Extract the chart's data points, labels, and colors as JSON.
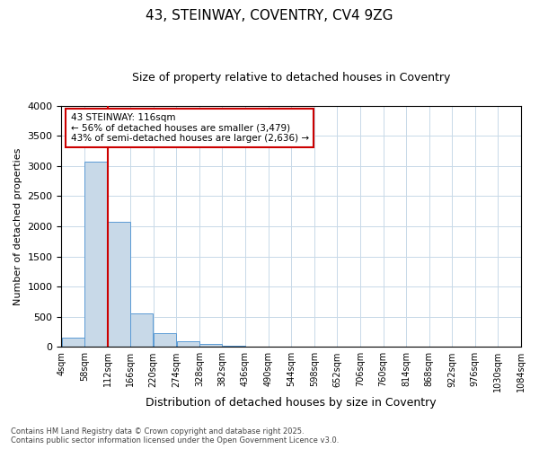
{
  "title1": "43, STEINWAY, COVENTRY, CV4 9ZG",
  "title2": "Size of property relative to detached houses in Coventry",
  "xlabel": "Distribution of detached houses by size in Coventry",
  "ylabel": "Number of detached properties",
  "annotation_title": "43 STEINWAY: 116sqm",
  "annotation_line1": "← 56% of detached houses are smaller (3,479)",
  "annotation_line2": "43% of semi-detached houses are larger (2,636) →",
  "footer1": "Contains HM Land Registry data © Crown copyright and database right 2025.",
  "footer2": "Contains public sector information licensed under the Open Government Licence v3.0.",
  "property_sqm": 116,
  "bin_edges": [
    4,
    58,
    112,
    166,
    220,
    274,
    328,
    382,
    436,
    490,
    544,
    598,
    652,
    706,
    760,
    814,
    868,
    922,
    976,
    1030,
    1084
  ],
  "bin_labels": [
    "4sqm",
    "58sqm",
    "112sqm",
    "166sqm",
    "220sqm",
    "274sqm",
    "328sqm",
    "382sqm",
    "436sqm",
    "490sqm",
    "544sqm",
    "598sqm",
    "652sqm",
    "706sqm",
    "760sqm",
    "814sqm",
    "868sqm",
    "922sqm",
    "976sqm",
    "1030sqm",
    "1084sqm"
  ],
  "bar_heights": [
    150,
    3080,
    2080,
    560,
    230,
    90,
    50,
    15,
    8,
    5,
    3,
    2,
    1,
    1,
    1,
    0,
    0,
    0,
    0,
    0
  ],
  "bar_color": "#c8d9e8",
  "bar_edge_color": "#5b9bd5",
  "vline_color": "#cc0000",
  "vline_x": 112,
  "ylim": [
    0,
    4000
  ],
  "yticks": [
    0,
    500,
    1000,
    1500,
    2000,
    2500,
    3000,
    3500,
    4000
  ],
  "annotation_box_color": "#cc0000",
  "background_color": "#ffffff",
  "grid_color": "#c8d9e8"
}
